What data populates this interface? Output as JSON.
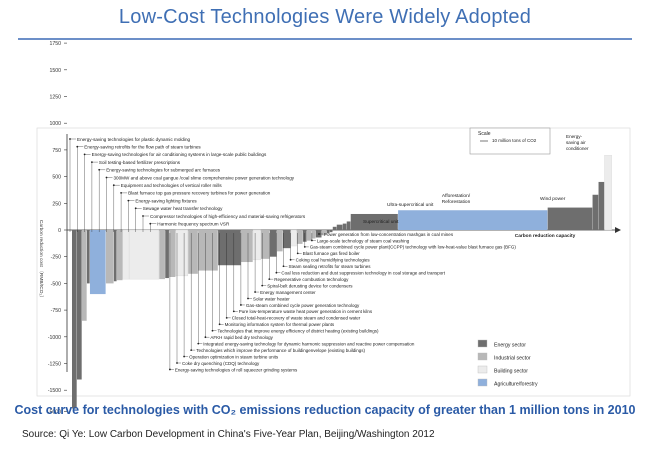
{
  "slide": {
    "title": "Low-Cost Technologies Were Widely Adopted",
    "caption": "Cost curve for technologies with CO₂ emissions reduction capacity of greater than 1 million tons in 2010",
    "source": "Source: Qi Ye: Low Carbon Development in China's  Five-Year Plan, Beijing/Washington 2012"
  },
  "colors": {
    "title": "#3f6fb4",
    "energy": "#6e6e6e",
    "industrial": "#b8b8b8",
    "building": "#ececec",
    "agriculture": "#8fb0dc",
    "caption": "#2a5aa6"
  },
  "chart_data": {
    "type": "bar",
    "ylabel": "Carbon reduction cost （RMB/tCO₂）",
    "xlabel": "Carbon reduction capacity",
    "ylim": [
      -5500,
      2000
    ],
    "yticks": [
      1750,
      1500,
      1250,
      1000,
      750,
      500,
      250,
      0,
      -250,
      -500,
      -750,
      -1000,
      -1250,
      -1500,
      -5000
    ],
    "ytick_labels": [
      "1750",
      "1500",
      "1250",
      "1000",
      "750",
      "500",
      "250",
      "0",
      "-250",
      "-500",
      "-750",
      "-1000",
      "-1250",
      "-1500",
      "-5000"
    ],
    "scale": {
      "title": "Scale",
      "label": "10 million tons of CO2"
    },
    "legend": {
      "placement": "bottom-right",
      "entries": [
        {
          "key": "energy",
          "label": "Energy sector"
        },
        {
          "key": "industrial",
          "label": "Industrial sector"
        },
        {
          "key": "building",
          "label": "Building sector"
        },
        {
          "key": "agriculture",
          "label": "Agriculture/forestry"
        }
      ]
    },
    "bars": [
      {
        "sector": "energy",
        "width": 1,
        "value": -4500
      },
      {
        "sector": "energy",
        "width": 1,
        "value": -1400
      },
      {
        "sector": "industrial",
        "width": 1,
        "value": -850
      },
      {
        "sector": "energy",
        "width": 0.6,
        "value": -500
      },
      {
        "sector": "agriculture",
        "width": 3.2,
        "value": -600
      },
      {
        "sector": "industrial",
        "width": 1.6,
        "value": -500
      },
      {
        "sector": "energy",
        "width": 0.6,
        "value": -480
      },
      {
        "sector": "industrial",
        "width": 1.2,
        "value": -470
      },
      {
        "sector": "building",
        "width": 1.3,
        "value": -460
      },
      {
        "sector": "building",
        "width": 6,
        "value": -460
      },
      {
        "sector": "industrial",
        "width": 1.2,
        "value": -460
      },
      {
        "sector": "energy",
        "width": 0.8,
        "value": -450
      },
      {
        "sector": "industrial",
        "width": 1.3,
        "value": -440
      },
      {
        "sector": "building",
        "width": 2.5,
        "value": -430
      },
      {
        "sector": "industrial",
        "width": 2,
        "value": -410
      },
      {
        "sector": "industrial",
        "width": 4,
        "value": -380
      },
      {
        "sector": "energy",
        "width": 4.6,
        "value": -330
      },
      {
        "sector": "industrial",
        "width": 2.4,
        "value": -300
      },
      {
        "sector": "building",
        "width": 1.6,
        "value": -280
      },
      {
        "sector": "industrial",
        "width": 1.8,
        "value": -270
      },
      {
        "sector": "energy",
        "width": 1.4,
        "value": -250
      },
      {
        "sector": "industrial",
        "width": 1.2,
        "value": -200
      },
      {
        "sector": "energy",
        "width": 1.6,
        "value": -170
      },
      {
        "sector": "building",
        "width": 1.2,
        "value": -150
      },
      {
        "sector": "industrial",
        "width": 1.2,
        "value": -130
      },
      {
        "sector": "energy",
        "width": 0.8,
        "value": -110
      },
      {
        "sector": "industrial",
        "width": 1.0,
        "value": -100
      },
      {
        "sector": "industrial",
        "width": 0.8,
        "value": -80
      },
      {
        "sector": "energy",
        "width": 1.2,
        "value": -70
      },
      {
        "sector": "industrial",
        "width": 1.0,
        "value": -50
      },
      {
        "sector": "energy",
        "width": 0.6,
        "value": -30
      },
      {
        "sector": "energy",
        "width": 0.6,
        "value": -20
      },
      {
        "sector": "energy",
        "width": 0.8,
        "value": 30
      },
      {
        "sector": "energy",
        "width": 1.2,
        "value": 50
      },
      {
        "sector": "energy",
        "width": 0.8,
        "value": 60
      },
      {
        "sector": "energy",
        "width": 0.8,
        "value": 80
      },
      {
        "sector": "energy",
        "width": 9.5,
        "value": 150
      },
      {
        "sector": "agriculture",
        "width": 30,
        "value": 185
      },
      {
        "sector": "energy",
        "width": 9,
        "value": 210
      },
      {
        "sector": "energy",
        "width": 1.2,
        "value": 330
      },
      {
        "sector": "energy",
        "width": 1.2,
        "value": 450
      },
      {
        "sector": "building",
        "width": 1.5,
        "value": 700
      }
    ],
    "top_labels": [
      "Energy-saving technologies for plastic dynamic molding",
      "Energy-saving retrofits for the flow path of steam turbines",
      "Energy-saving technologies for air conditioning systems in large-scale public buildings",
      "Soil testing-based fertilizer prescriptions",
      "Energy-saving technologies for submerged arc furnaces",
      "300MW and above coal gangue /coal slime comprehensive power generation technology",
      "Equipment and technologies of vertical roller mills",
      "Blast furnace top gas pressure recovery turbines for power generation",
      "Energy-saving lighting fixtures",
      "Sewage water heat transfer technology",
      "Compressor technologies of high-efficiency and material-saving refrigerators",
      "Harmonic frequency spectrum VSR"
    ],
    "mid_labels": [
      "Power generation from low-concentration mashgas in coal mines",
      "Large-scale technology of steam coal washing",
      "Gas-steam combined cycle power plant(CCPP) technology with low-heat-value blast furnace gas (BFG)",
      "Blast furnace gas fired boiler",
      "Coking coal humidifying technologies",
      "Steam sealing retrofits for steam turbines",
      "Coal loss reduction and dust suppression technology in coal storage and transport",
      "Regenerative combustion technology",
      "Spiral-belt derusting device for condensers",
      "Energy management center",
      "Solar water heater",
      "Gas-steam combined cycle  power generation technology",
      "Pure low-temperature waste heat power generation in cement kilns",
      "Closed total-heat-recovery of waste steam and condensed water",
      "Monitoring information system for thermal power plants",
      "Technologies that improve energy efficiency of district heating  (existing buildings)",
      "AFKH rapid bed dry technology",
      "Integrated energy-saving technology for dynamic harmonic suppression and reactive power compensation",
      "Technologies which improve the performance of buildingenvelope (existing buildings)",
      "Operation optimization in steam turbine units",
      "Coke dry quenching (CDQ) technology",
      "Energy-saving technologies of roll squeezer grinding systems"
    ],
    "right_labels": {
      "supercritical": "Supercritical unit",
      "ultra": "Ultra-supercritical unit",
      "afforestation": "Afforestation/\nReforestation",
      "wind": "Wind power",
      "ac": "Energy-\nsaving air\nconditioner"
    }
  }
}
